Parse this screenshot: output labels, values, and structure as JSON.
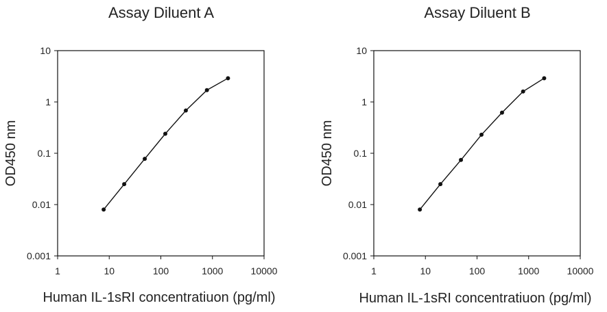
{
  "chart_data": [
    {
      "type": "line",
      "title": "Assay Diluent A",
      "xlabel": "Human IL-1sRI concentratiuon (pg/ml)",
      "ylabel": "OD450 nm",
      "xscale": "log",
      "yscale": "log",
      "xlim": [
        1,
        10000
      ],
      "ylim": [
        0.001,
        10
      ],
      "xticks": [
        "1",
        "10",
        "100",
        "1000",
        "10000"
      ],
      "yticks": [
        "0.001",
        "0.01",
        "0.1",
        "1",
        "10"
      ],
      "grid": false,
      "series": [
        {
          "x": [
            7.8,
            19.5,
            48.8,
            122,
            305,
            781,
            2000
          ],
          "y": [
            0.008,
            0.025,
            0.078,
            0.24,
            0.68,
            1.7,
            2.9
          ]
        }
      ]
    },
    {
      "type": "line",
      "title": "Assay Diluent B",
      "xlabel": "Human IL-1sRI concentratiuon (pg/ml)",
      "ylabel": "OD450 nm",
      "xscale": "log",
      "yscale": "log",
      "xlim": [
        1,
        10000
      ],
      "ylim": [
        0.001,
        10
      ],
      "xticks": [
        "1",
        "10",
        "100",
        "1000",
        "10000"
      ],
      "yticks": [
        "0.001",
        "0.01",
        "0.1",
        "1",
        "10"
      ],
      "grid": false,
      "series": [
        {
          "x": [
            7.8,
            19.5,
            48.8,
            122,
            305,
            781,
            2000
          ],
          "y": [
            0.008,
            0.025,
            0.074,
            0.23,
            0.62,
            1.6,
            2.9
          ]
        }
      ]
    }
  ]
}
